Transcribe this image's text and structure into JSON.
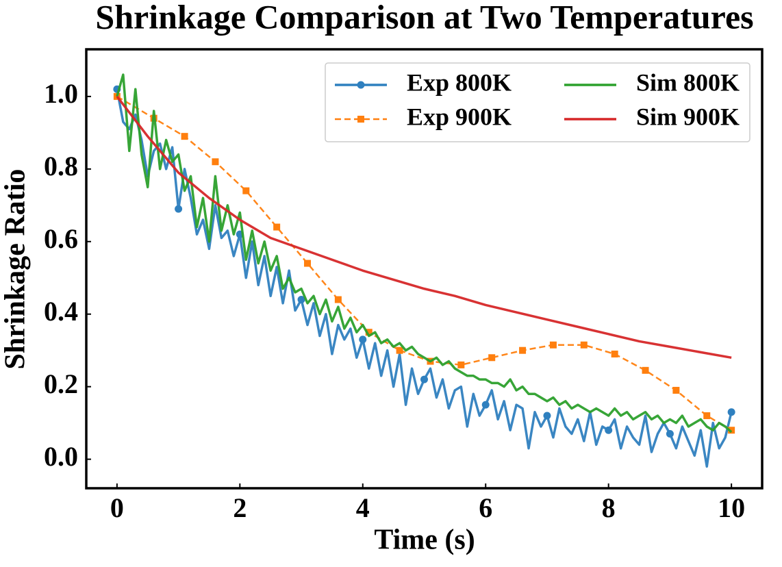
{
  "chart_data": {
    "type": "line",
    "title": "Shrinkage Comparison at Two Temperatures",
    "x_label": "Time (s)",
    "y_label": "Shrinkage Ratio",
    "xlim": [
      -0.5,
      10.5
    ],
    "ylim": [
      -0.08,
      1.13
    ],
    "xticks": [
      0,
      2,
      4,
      6,
      8,
      10
    ],
    "yticks": [
      {
        "value": 0,
        "label": "0.0"
      },
      {
        "value": 0.2,
        "label": "0.2"
      },
      {
        "value": 0.4,
        "label": "0.4"
      },
      {
        "value": 0.6,
        "label": "0.6"
      },
      {
        "value": 0.8,
        "label": "0.8"
      },
      {
        "value": 1,
        "label": "1.0"
      }
    ],
    "grid": false,
    "legend_position": "upper right",
    "legend_columns": 2,
    "series": [
      {
        "name": "Exp 800K",
        "color": "#2f80bf",
        "linestyle": "solid",
        "marker": "o",
        "markevery": 10,
        "x": [
          0,
          0.1,
          0.2,
          0.3,
          0.4,
          0.5,
          0.6,
          0.7,
          0.8,
          0.9,
          1,
          1.1,
          1.2,
          1.3,
          1.4,
          1.5,
          1.6,
          1.7,
          1.8,
          1.9,
          2,
          2.1,
          2.2,
          2.3,
          2.4,
          2.5,
          2.6,
          2.7,
          2.8,
          2.9,
          3,
          3.1,
          3.2,
          3.3,
          3.4,
          3.5,
          3.6,
          3.7,
          3.8,
          3.9,
          4,
          4.1,
          4.2,
          4.3,
          4.4,
          4.5,
          4.6,
          4.7,
          4.8,
          4.9,
          5,
          5.1,
          5.2,
          5.3,
          5.4,
          5.5,
          5.6,
          5.7,
          5.8,
          5.9,
          6,
          6.1,
          6.2,
          6.3,
          6.4,
          6.5,
          6.6,
          6.7,
          6.8,
          6.9,
          7,
          7.1,
          7.2,
          7.3,
          7.4,
          7.5,
          7.6,
          7.7,
          7.8,
          7.9,
          8,
          8.1,
          8.2,
          8.3,
          8.4,
          8.5,
          8.6,
          8.7,
          8.8,
          8.9,
          9,
          9.1,
          9.2,
          9.3,
          9.4,
          9.5,
          9.6,
          9.7,
          9.8,
          9.9,
          10
        ],
        "values": [
          1.02,
          0.93,
          0.91,
          0.95,
          0.88,
          0.78,
          0.85,
          0.87,
          0.8,
          0.86,
          0.69,
          0.8,
          0.72,
          0.62,
          0.66,
          0.58,
          0.7,
          0.61,
          0.63,
          0.56,
          0.62,
          0.5,
          0.6,
          0.48,
          0.56,
          0.45,
          0.53,
          0.43,
          0.52,
          0.41,
          0.44,
          0.37,
          0.43,
          0.34,
          0.4,
          0.29,
          0.37,
          0.33,
          0.36,
          0.28,
          0.33,
          0.25,
          0.32,
          0.23,
          0.3,
          0.2,
          0.29,
          0.15,
          0.25,
          0.18,
          0.22,
          0.25,
          0.17,
          0.22,
          0.14,
          0.19,
          0.2,
          0.09,
          0.18,
          0.12,
          0.15,
          0.19,
          0.11,
          0.16,
          0.08,
          0.15,
          0.14,
          0.03,
          0.13,
          0.09,
          0.12,
          0.06,
          0.14,
          0.09,
          0.07,
          0.11,
          0.05,
          0.13,
          0.04,
          0.09,
          0.08,
          0.11,
          0.03,
          0.09,
          0.06,
          0.04,
          0.12,
          0.02,
          0.07,
          0.1,
          0.07,
          0.03,
          0.09,
          0.05,
          0.01,
          0.08,
          -0.02,
          0.1,
          0.03,
          0.06,
          0.13
        ]
      },
      {
        "name": "Exp 900K",
        "color": "#ff7f0e",
        "linestyle": "dashed",
        "marker": "s",
        "markevery": 1,
        "x": [
          0,
          0.6,
          1.1,
          1.6,
          2.1,
          2.6,
          3.1,
          3.6,
          4.1,
          4.6,
          5.1,
          5.6,
          6.1,
          6.6,
          7.1,
          7.6,
          8.1,
          8.6,
          9.1,
          9.6,
          10
        ],
        "values": [
          1.0,
          0.94,
          0.89,
          0.82,
          0.74,
          0.64,
          0.54,
          0.44,
          0.35,
          0.3,
          0.27,
          0.26,
          0.28,
          0.3,
          0.315,
          0.315,
          0.29,
          0.245,
          0.19,
          0.12,
          0.08
        ]
      },
      {
        "name": "Sim 800K",
        "color": "#2ca02c",
        "linestyle": "solid",
        "marker": "none",
        "markevery": 1,
        "x": [
          0,
          0.1,
          0.2,
          0.3,
          0.4,
          0.5,
          0.6,
          0.7,
          0.8,
          0.9,
          1,
          1.1,
          1.2,
          1.3,
          1.4,
          1.5,
          1.6,
          1.7,
          1.8,
          1.9,
          2,
          2.1,
          2.2,
          2.3,
          2.4,
          2.5,
          2.6,
          2.7,
          2.8,
          2.9,
          3,
          3.1,
          3.2,
          3.3,
          3.4,
          3.5,
          3.6,
          3.7,
          3.8,
          3.9,
          4,
          4.1,
          4.2,
          4.3,
          4.4,
          4.5,
          4.6,
          4.7,
          4.8,
          4.9,
          5,
          5.1,
          5.2,
          5.3,
          5.4,
          5.5,
          5.6,
          5.7,
          5.8,
          5.9,
          6,
          6.1,
          6.2,
          6.3,
          6.4,
          6.5,
          6.6,
          6.7,
          6.8,
          6.9,
          7,
          7.1,
          7.2,
          7.3,
          7.4,
          7.5,
          7.6,
          7.7,
          7.8,
          7.9,
          8,
          8.1,
          8.2,
          8.3,
          8.4,
          8.5,
          8.6,
          8.7,
          8.8,
          8.9,
          9,
          9.1,
          9.2,
          9.3,
          9.4,
          9.5,
          9.6,
          9.7,
          9.8,
          9.9,
          10
        ],
        "values": [
          1.0,
          1.06,
          0.85,
          1.02,
          0.84,
          0.75,
          0.96,
          0.8,
          0.88,
          0.82,
          0.84,
          0.74,
          0.78,
          0.64,
          0.72,
          0.6,
          0.78,
          0.63,
          0.7,
          0.62,
          0.68,
          0.55,
          0.63,
          0.54,
          0.6,
          0.52,
          0.56,
          0.47,
          0.5,
          0.46,
          0.47,
          0.43,
          0.45,
          0.4,
          0.44,
          0.38,
          0.42,
          0.36,
          0.39,
          0.35,
          0.37,
          0.34,
          0.35,
          0.32,
          0.33,
          0.31,
          0.32,
          0.3,
          0.31,
          0.29,
          0.28,
          0.27,
          0.28,
          0.26,
          0.27,
          0.25,
          0.24,
          0.23,
          0.23,
          0.22,
          0.22,
          0.21,
          0.21,
          0.2,
          0.22,
          0.19,
          0.2,
          0.18,
          0.18,
          0.17,
          0.16,
          0.17,
          0.15,
          0.16,
          0.14,
          0.15,
          0.14,
          0.13,
          0.14,
          0.13,
          0.12,
          0.14,
          0.12,
          0.13,
          0.11,
          0.12,
          0.13,
          0.11,
          0.12,
          0.1,
          0.11,
          0.1,
          0.12,
          0.09,
          0.1,
          0.11,
          0.09,
          0.08,
          0.1,
          0.09,
          0.075
        ]
      },
      {
        "name": "Sim 900K",
        "color": "#d62728",
        "linestyle": "solid",
        "marker": "none",
        "markevery": 1,
        "x": [
          0,
          0.5,
          1,
          1.5,
          2,
          2.5,
          3,
          3.5,
          4,
          4.5,
          5,
          5.5,
          6,
          6.5,
          7,
          7.5,
          8,
          8.5,
          9,
          9.5,
          10
        ],
        "values": [
          1.0,
          0.89,
          0.79,
          0.72,
          0.66,
          0.61,
          0.58,
          0.55,
          0.52,
          0.495,
          0.47,
          0.45,
          0.425,
          0.405,
          0.385,
          0.365,
          0.345,
          0.325,
          0.31,
          0.295,
          0.28
        ]
      }
    ]
  }
}
